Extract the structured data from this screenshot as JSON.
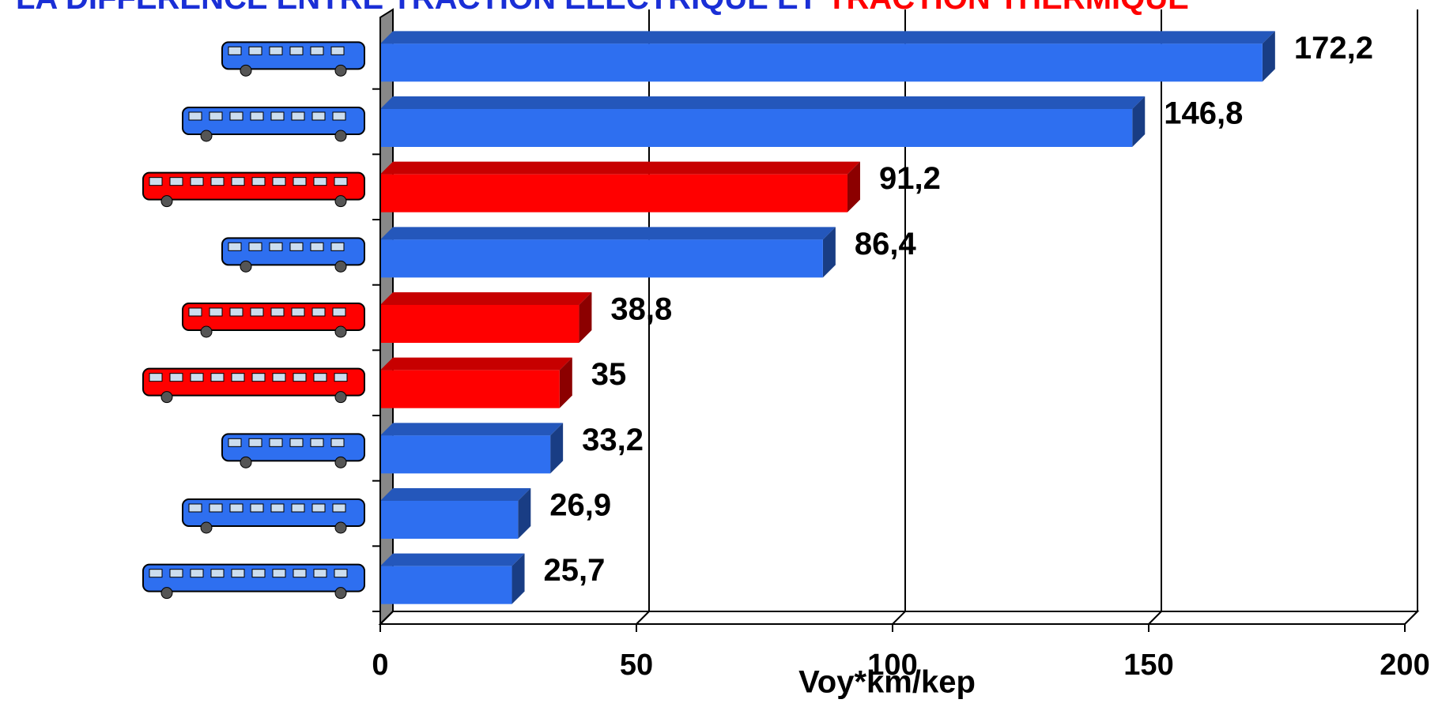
{
  "chart_data": {
    "type": "bar3d",
    "title_parts": [
      {
        "text": "LA DIFFERENCE ENTRE TRACTION ELECTRIQUE ET",
        "color": "#1a2fd6"
      },
      {
        "text": "TRACTION THERMIQUE",
        "color": "#ff0000"
      }
    ],
    "x_label": "Voy*km/kep",
    "categories": [
      null,
      null,
      null,
      null,
      null,
      null,
      null,
      null,
      null
    ],
    "values": [
      172.2,
      146.8,
      91.2,
      86.4,
      38.8,
      35,
      33.2,
      26.9,
      25.7
    ],
    "value_labels": [
      "172,2",
      "146,8",
      "91,2",
      "86,4",
      "38,8",
      "35",
      "33,2",
      "26,9",
      "25,7"
    ],
    "colors": [
      "#2e6ff0",
      "#2e6ff0",
      "#ff0000",
      "#2e6ff0",
      "#ff0000",
      "#ff0000",
      "#2e6ff0",
      "#2e6ff0",
      "#2e6ff0"
    ],
    "xlim": [
      0,
      200
    ],
    "xticks": [
      0,
      50,
      100,
      150,
      200
    ],
    "grid": true
  }
}
